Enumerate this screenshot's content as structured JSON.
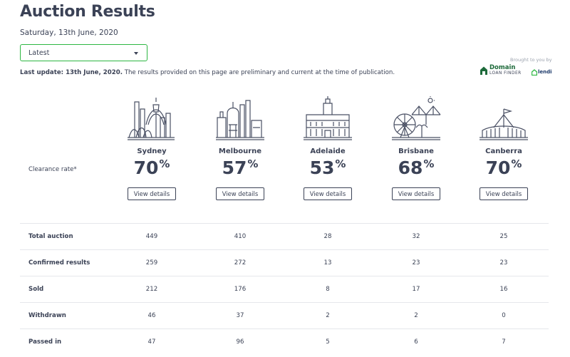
{
  "page": {
    "title": "Auction Results",
    "date": "Saturday, 13th June, 2020",
    "select_value": "Latest",
    "last_update_label": "Last update: 13th June, 2020.",
    "last_update_note": "The results provided on this page are preliminary and current at the time of publication."
  },
  "sponsor": {
    "brought_by": "Brought to you by",
    "domain_brand": "Domain",
    "domain_sub": "LOAN FINDER",
    "lendi": "lendi"
  },
  "clearance_label": "Clearance rate*",
  "view_details_label": "View details",
  "cities": [
    {
      "name": "Sydney",
      "rate": "70",
      "pct": "%"
    },
    {
      "name": "Melbourne",
      "rate": "57",
      "pct": "%"
    },
    {
      "name": "Adelaide",
      "rate": "53",
      "pct": "%"
    },
    {
      "name": "Brisbane",
      "rate": "68",
      "pct": "%"
    },
    {
      "name": "Canberra",
      "rate": "70",
      "pct": "%"
    }
  ],
  "table": [
    {
      "label": "Total auction",
      "values": [
        "449",
        "410",
        "28",
        "32",
        "25"
      ]
    },
    {
      "label": "Confirmed results",
      "values": [
        "259",
        "272",
        "13",
        "23",
        "23"
      ]
    },
    {
      "label": "Sold",
      "values": [
        "212",
        "176",
        "8",
        "17",
        "16"
      ]
    },
    {
      "label": "Withdrawn",
      "values": [
        "46",
        "37",
        "2",
        "2",
        "0"
      ]
    },
    {
      "label": "Passed in",
      "values": [
        "47",
        "96",
        "5",
        "6",
        "7"
      ]
    }
  ],
  "colors": {
    "text": "#3b4256",
    "select_border": "#2db742",
    "brand_green": "#1d6a3a",
    "divider": "#e5e7eb"
  }
}
